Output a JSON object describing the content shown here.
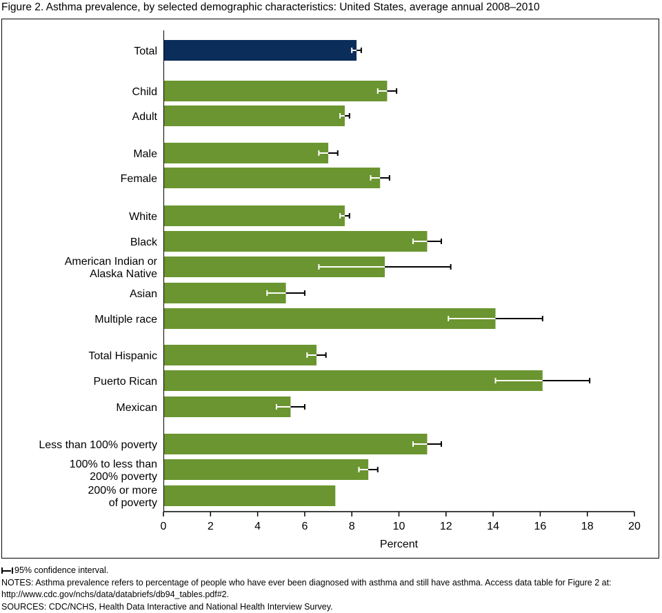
{
  "title": "Figure 2. Asthma prevalence, by selected demographic characteristics: United States, average annual 2008–2010",
  "colors": {
    "total_bar": "#0b2d5a",
    "group_bar": "#6b9530",
    "ci_inner": "#ffffff",
    "ci_outer": "#000000"
  },
  "chart_data": {
    "type": "bar",
    "orientation": "horizontal",
    "xlabel": "Percent",
    "xlim": [
      0,
      20
    ],
    "xticks": [
      "0",
      "2",
      "4",
      "6",
      "8",
      "10",
      "12",
      "14",
      "16",
      "18",
      "20"
    ],
    "grid": false,
    "categories": [
      [
        "Total"
      ],
      [
        "Child"
      ],
      [
        "Adult"
      ],
      [
        "Male"
      ],
      [
        "Female"
      ],
      [
        "White"
      ],
      [
        "Black"
      ],
      [
        "American Indian or",
        "Alaska Native"
      ],
      [
        "Asian"
      ],
      [
        "Multiple race"
      ],
      [
        "Total Hispanic"
      ],
      [
        "Puerto Rican"
      ],
      [
        "Mexican"
      ],
      [
        "Less than 100% poverty"
      ],
      [
        "100% to less than",
        "200% poverty"
      ],
      [
        "200% or more",
        "of poverty"
      ]
    ],
    "values": [
      8.2,
      9.5,
      7.7,
      7.0,
      9.2,
      7.7,
      11.2,
      9.4,
      5.2,
      14.1,
      6.5,
      16.1,
      5.4,
      11.2,
      8.7,
      7.3
    ],
    "ci_lower": [
      8.0,
      9.1,
      7.5,
      6.6,
      8.8,
      7.5,
      10.6,
      6.6,
      4.4,
      12.1,
      6.1,
      14.1,
      4.8,
      10.6,
      8.3,
      null
    ],
    "ci_upper": [
      8.4,
      9.9,
      7.9,
      7.4,
      9.6,
      7.9,
      11.8,
      12.2,
      6.0,
      16.1,
      6.9,
      18.1,
      6.0,
      11.8,
      9.1,
      null
    ],
    "highlight": [
      true,
      false,
      false,
      false,
      false,
      false,
      false,
      false,
      false,
      false,
      false,
      false,
      false,
      false,
      false,
      false
    ]
  },
  "legend": {
    "ci_label": "95% confidence interval."
  },
  "notes": {
    "line1": "NOTES: Asthma prevalence refers to percentage of people who have ever been diagnosed with asthma and still have asthma. Access data table for Figure 2 at:",
    "line2": "http://www.cdc.gov/nchs/data/databriefs/db94_tables.pdf#2.",
    "sources": "SOURCES: CDC/NCHS, Health Data Interactive and National Health Interview Survey."
  }
}
